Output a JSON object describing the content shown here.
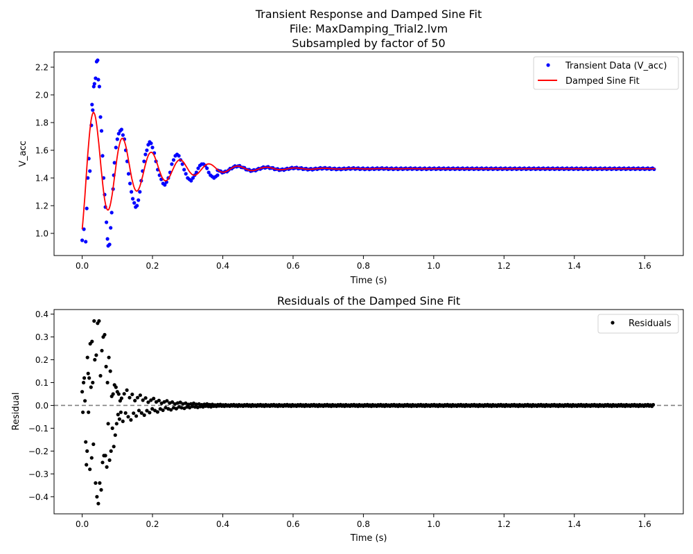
{
  "chart_data": [
    {
      "type": "scatter",
      "title_lines": [
        "Transient Response and Damped Sine Fit",
        "File: MaxDamping_Trial2.lvm",
        "Subsampled by factor of 50"
      ],
      "xlabel": "Time (s)",
      "ylabel": "V_acc",
      "xlim": [
        -0.08,
        1.71
      ],
      "ylim": [
        0.84,
        2.31
      ],
      "xticks": [
        0.0,
        0.2,
        0.4,
        0.6,
        0.8,
        1.0,
        1.2,
        1.4,
        1.6
      ],
      "xtick_labels": [
        "0.0",
        "0.2",
        "0.4",
        "0.6",
        "0.8",
        "1.0",
        "1.2",
        "1.4",
        "1.6"
      ],
      "yticks": [
        1.0,
        1.2,
        1.4,
        1.6,
        1.8,
        2.0,
        2.2
      ],
      "ytick_labels": [
        "1.0",
        "1.2",
        "1.4",
        "1.6",
        "1.8",
        "2.0",
        "2.2"
      ],
      "grid": false,
      "legend": "top-right",
      "series": [
        {
          "name": "Transient Data (V_acc)",
          "kind": "points",
          "color": "#0000ff",
          "points": [
            [
              0.0,
              0.95
            ],
            [
              0.005,
              1.03
            ],
            [
              0.01,
              0.94
            ],
            [
              0.013,
              1.18
            ],
            [
              0.016,
              1.4
            ],
            [
              0.019,
              1.54
            ],
            [
              0.022,
              1.45
            ],
            [
              0.026,
              1.78
            ],
            [
              0.028,
              1.93
            ],
            [
              0.03,
              1.89
            ],
            [
              0.033,
              2.06
            ],
            [
              0.035,
              2.08
            ],
            [
              0.038,
              2.12
            ],
            [
              0.041,
              2.24
            ],
            [
              0.044,
              2.25
            ],
            [
              0.046,
              2.11
            ],
            [
              0.049,
              2.06
            ],
            [
              0.052,
              1.84
            ],
            [
              0.055,
              1.74
            ],
            [
              0.058,
              1.56
            ],
            [
              0.061,
              1.4
            ],
            [
              0.064,
              1.28
            ],
            [
              0.066,
              1.19
            ],
            [
              0.069,
              1.08
            ],
            [
              0.072,
              0.96
            ],
            [
              0.074,
              0.91
            ],
            [
              0.078,
              0.92
            ],
            [
              0.081,
              1.04
            ],
            [
              0.084,
              1.15
            ],
            [
              0.088,
              1.32
            ],
            [
              0.09,
              1.42
            ],
            [
              0.092,
              1.51
            ],
            [
              0.096,
              1.62
            ],
            [
              0.1,
              1.68
            ],
            [
              0.104,
              1.72
            ],
            [
              0.108,
              1.74
            ],
            [
              0.112,
              1.75
            ],
            [
              0.116,
              1.71
            ],
            [
              0.12,
              1.68
            ],
            [
              0.124,
              1.6
            ],
            [
              0.128,
              1.52
            ],
            [
              0.132,
              1.43
            ],
            [
              0.136,
              1.36
            ],
            [
              0.14,
              1.3
            ],
            [
              0.144,
              1.25
            ],
            [
              0.148,
              1.22
            ],
            [
              0.152,
              1.19
            ],
            [
              0.156,
              1.2
            ],
            [
              0.16,
              1.24
            ],
            [
              0.164,
              1.3
            ],
            [
              0.168,
              1.38
            ],
            [
              0.172,
              1.45
            ],
            [
              0.176,
              1.52
            ],
            [
              0.18,
              1.57
            ],
            [
              0.184,
              1.6
            ],
            [
              0.188,
              1.64
            ],
            [
              0.192,
              1.66
            ],
            [
              0.196,
              1.65
            ],
            [
              0.2,
              1.62
            ],
            [
              0.205,
              1.58
            ],
            [
              0.21,
              1.52
            ],
            [
              0.215,
              1.46
            ],
            [
              0.22,
              1.42
            ],
            [
              0.225,
              1.39
            ],
            [
              0.23,
              1.36
            ],
            [
              0.235,
              1.35
            ],
            [
              0.24,
              1.37
            ],
            [
              0.245,
              1.4
            ],
            [
              0.25,
              1.44
            ],
            [
              0.255,
              1.5
            ],
            [
              0.26,
              1.53
            ],
            [
              0.265,
              1.56
            ],
            [
              0.27,
              1.57
            ],
            [
              0.275,
              1.56
            ],
            [
              0.28,
              1.53
            ],
            [
              0.285,
              1.5
            ],
            [
              0.29,
              1.46
            ],
            [
              0.295,
              1.43
            ],
            [
              0.3,
              1.4
            ],
            [
              0.305,
              1.39
            ],
            [
              0.31,
              1.38
            ],
            [
              0.315,
              1.4
            ],
            [
              0.32,
              1.42
            ],
            [
              0.325,
              1.44
            ],
            [
              0.33,
              1.47
            ],
            [
              0.335,
              1.49
            ],
            [
              0.34,
              1.5
            ],
            [
              0.345,
              1.5
            ],
            [
              0.35,
              1.49
            ],
            [
              0.355,
              1.47
            ],
            [
              0.36,
              1.44
            ],
            [
              0.365,
              1.42
            ],
            [
              0.37,
              1.41
            ],
            [
              0.375,
              1.4
            ],
            [
              0.38,
              1.41
            ],
            [
              0.385,
              1.42
            ]
          ]
        },
        {
          "name": "Damped Sine Fit",
          "kind": "line",
          "color": "#ff0000",
          "model": {
            "baseline": 1.467,
            "amplitude": 0.52,
            "decay": 7.5,
            "frequency": 12.2,
            "phase": -1.0,
            "t_max": 1.63
          }
        }
      ],
      "tail_scatter": {
        "t_start": 0.385,
        "t_end": 1.628,
        "step": 0.0045,
        "color": "#0000ff"
      }
    },
    {
      "type": "scatter",
      "title": "Residuals of the Damped Sine Fit",
      "xlabel": "Time (s)",
      "ylabel": "Residual",
      "xlim": [
        -0.08,
        1.71
      ],
      "ylim": [
        -0.475,
        0.42
      ],
      "xticks": [
        0.0,
        0.2,
        0.4,
        0.6,
        0.8,
        1.0,
        1.2,
        1.4,
        1.6
      ],
      "xtick_labels": [
        "0.0",
        "0.2",
        "0.4",
        "0.6",
        "0.8",
        "1.0",
        "1.2",
        "1.4",
        "1.6"
      ],
      "yticks": [
        -0.4,
        -0.3,
        -0.2,
        -0.1,
        0.0,
        0.1,
        0.2,
        0.3,
        0.4
      ],
      "ytick_labels": [
        "−0.4",
        "−0.3",
        "−0.2",
        "−0.1",
        "0.0",
        "0.1",
        "0.2",
        "0.3",
        "0.4"
      ],
      "grid": false,
      "legend": "top-right",
      "reference_line": {
        "y": 0.0,
        "style": "dashed",
        "color": "#808080"
      },
      "series": [
        {
          "name": "Residuals",
          "kind": "points",
          "color": "#000000",
          "points": [
            [
              0.0,
              0.06
            ],
            [
              0.002,
              -0.03
            ],
            [
              0.004,
              0.1
            ],
            [
              0.006,
              0.12
            ],
            [
              0.008,
              0.02
            ],
            [
              0.01,
              -0.16
            ],
            [
              0.012,
              -0.26
            ],
            [
              0.014,
              -0.2
            ],
            [
              0.015,
              0.21
            ],
            [
              0.017,
              0.14
            ],
            [
              0.018,
              -0.03
            ],
            [
              0.02,
              0.12
            ],
            [
              0.022,
              -0.28
            ],
            [
              0.023,
              0.27
            ],
            [
              0.025,
              0.08
            ],
            [
              0.027,
              -0.23
            ],
            [
              0.028,
              0.28
            ],
            [
              0.03,
              0.1
            ],
            [
              0.032,
              -0.17
            ],
            [
              0.034,
              0.37
            ],
            [
              0.036,
              0.2
            ],
            [
              0.038,
              -0.34
            ],
            [
              0.04,
              0.22
            ],
            [
              0.042,
              -0.4
            ],
            [
              0.044,
              0.36
            ],
            [
              0.046,
              -0.43
            ],
            [
              0.048,
              0.37
            ],
            [
              0.05,
              -0.34
            ],
            [
              0.052,
              0.13
            ],
            [
              0.054,
              -0.37
            ],
            [
              0.056,
              0.24
            ],
            [
              0.058,
              -0.25
            ],
            [
              0.06,
              0.3
            ],
            [
              0.062,
              -0.22
            ],
            [
              0.064,
              0.31
            ],
            [
              0.066,
              -0.22
            ],
            [
              0.068,
              0.17
            ],
            [
              0.07,
              -0.27
            ],
            [
              0.072,
              0.1
            ],
            [
              0.074,
              -0.08
            ],
            [
              0.076,
              0.21
            ],
            [
              0.078,
              -0.24
            ],
            [
              0.08,
              0.15
            ],
            [
              0.082,
              -0.2
            ],
            [
              0.084,
              0.04
            ],
            [
              0.086,
              -0.1
            ],
            [
              0.088,
              0.05
            ],
            [
              0.09,
              -0.18
            ],
            [
              0.092,
              0.09
            ],
            [
              0.094,
              -0.13
            ],
            [
              0.096,
              0.08
            ],
            [
              0.098,
              -0.08
            ],
            [
              0.1,
              0.06
            ],
            [
              0.102,
              -0.04
            ],
            [
              0.104,
              0.05
            ],
            [
              0.106,
              -0.06
            ],
            [
              0.108,
              0.02
            ],
            [
              0.11,
              -0.03
            ]
          ],
          "envelope": {
            "t_start": 0.112,
            "t_end": 1.628,
            "step": 0.0038,
            "a0": 0.09,
            "decay": 10.5,
            "floor": 0.004
          }
        }
      ]
    }
  ]
}
